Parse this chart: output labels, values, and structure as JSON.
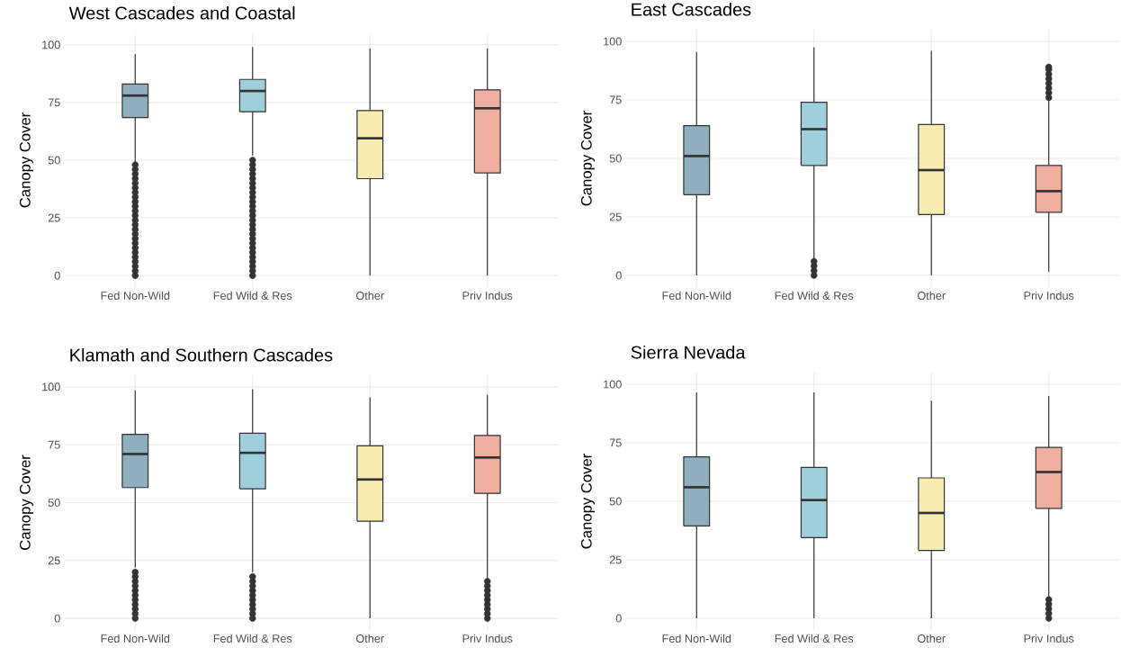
{
  "chart_data": [
    {
      "type": "box",
      "title": "West Cascades and Coastal",
      "ylabel": "Canopy Cover",
      "categories": [
        "Fed Non-Wild",
        "Fed Wild & Res",
        "Other",
        "Priv Indus"
      ],
      "colors": [
        "#8fafc0",
        "#9ecfdb",
        "#f7edb0",
        "#eeaea0"
      ],
      "ylim": [
        -5,
        105
      ],
      "yticks": [
        0,
        25,
        50,
        75,
        100
      ],
      "grid": true,
      "boxes": [
        {
          "low": 49,
          "q1": 68.5,
          "median": 78,
          "q3": 83,
          "high": 96,
          "outliers": [
            0,
            2,
            4,
            6,
            8,
            10,
            12,
            14,
            16,
            18,
            20,
            22,
            24,
            26,
            28,
            30,
            32,
            34,
            36,
            38,
            40,
            42,
            44,
            46,
            48
          ]
        },
        {
          "low": 52,
          "q1": 71,
          "median": 80,
          "q3": 85,
          "high": 99,
          "outliers": [
            0,
            2,
            4,
            6,
            8,
            10,
            12,
            14,
            16,
            18,
            20,
            22,
            24,
            26,
            28,
            30,
            32,
            34,
            36,
            38,
            40,
            42,
            44,
            46,
            48,
            50
          ]
        },
        {
          "low": 0,
          "q1": 42,
          "median": 59.5,
          "q3": 71.5,
          "high": 98.5
        },
        {
          "low": 0,
          "q1": 44.5,
          "median": 72.5,
          "q3": 80.5,
          "high": 98.5
        }
      ]
    },
    {
      "type": "box",
      "title": "East Cascades",
      "ylabel": "Canopy Cover",
      "categories": [
        "Fed Non-Wild",
        "Fed Wild & Res",
        "Other",
        "Priv Indus"
      ],
      "colors": [
        "#8fafc0",
        "#9ecfdb",
        "#f7edb0",
        "#eeaea0"
      ],
      "ylim": [
        -5,
        105
      ],
      "yticks": [
        0,
        25,
        50,
        75,
        100
      ],
      "grid": true,
      "boxes": [
        {
          "low": 0,
          "q1": 34.5,
          "median": 51,
          "q3": 64,
          "high": 95.5
        },
        {
          "low": 7,
          "q1": 47,
          "median": 62.5,
          "q3": 74,
          "high": 97.5,
          "outliers": [
            0,
            2,
            4,
            6
          ]
        },
        {
          "low": 0,
          "q1": 26,
          "median": 45,
          "q3": 64.5,
          "high": 96
        },
        {
          "low": 1.5,
          "q1": 27,
          "median": 36,
          "q3": 47,
          "high": 75,
          "outliers": [
            76,
            78,
            80,
            82,
            84,
            86,
            88,
            89
          ]
        }
      ]
    },
    {
      "type": "box",
      "title": "Klamath and Southern Cascades",
      "ylabel": "Canopy Cover",
      "categories": [
        "Fed Non-Wild",
        "Fed Wild & Res",
        "Other",
        "Priv Indus"
      ],
      "colors": [
        "#8fafc0",
        "#9ecfdb",
        "#f7edb0",
        "#eeaea0"
      ],
      "ylim": [
        -5,
        105
      ],
      "yticks": [
        0,
        25,
        50,
        75,
        100
      ],
      "grid": true,
      "boxes": [
        {
          "low": 22,
          "q1": 56.5,
          "median": 71,
          "q3": 79.5,
          "high": 98.5,
          "outliers": [
            0,
            2,
            4,
            6,
            8,
            10,
            12,
            14,
            16,
            18,
            20
          ]
        },
        {
          "low": 20,
          "q1": 56,
          "median": 71.5,
          "q3": 80,
          "high": 99,
          "outliers": [
            0,
            2,
            4,
            6,
            8,
            10,
            12,
            14,
            16,
            18
          ]
        },
        {
          "low": 0,
          "q1": 42,
          "median": 60,
          "q3": 74.5,
          "high": 95.5
        },
        {
          "low": 17,
          "q1": 54,
          "median": 69.5,
          "q3": 79,
          "high": 96.5,
          "outliers": [
            0,
            2,
            4,
            6,
            8,
            10,
            12,
            14,
            16
          ]
        }
      ]
    },
    {
      "type": "box",
      "title": "Sierra Nevada",
      "ylabel": "Canopy Cover",
      "categories": [
        "Fed Non-Wild",
        "Fed Wild & Res",
        "Other",
        "Priv Indus"
      ],
      "colors": [
        "#8fafc0",
        "#9ecfdb",
        "#f7edb0",
        "#eeaea0"
      ],
      "ylim": [
        -5,
        105
      ],
      "yticks": [
        0,
        25,
        50,
        75,
        100
      ],
      "grid": true,
      "boxes": [
        {
          "low": 0,
          "q1": 39.5,
          "median": 56,
          "q3": 69,
          "high": 96.5
        },
        {
          "low": 0,
          "q1": 34.5,
          "median": 50.5,
          "q3": 64.5,
          "high": 96.5
        },
        {
          "low": 0,
          "q1": 29,
          "median": 45,
          "q3": 60,
          "high": 93
        },
        {
          "low": 9,
          "q1": 47,
          "median": 62.5,
          "q3": 73,
          "high": 95,
          "outliers": [
            0,
            2,
            4,
            6,
            8
          ]
        }
      ]
    }
  ]
}
